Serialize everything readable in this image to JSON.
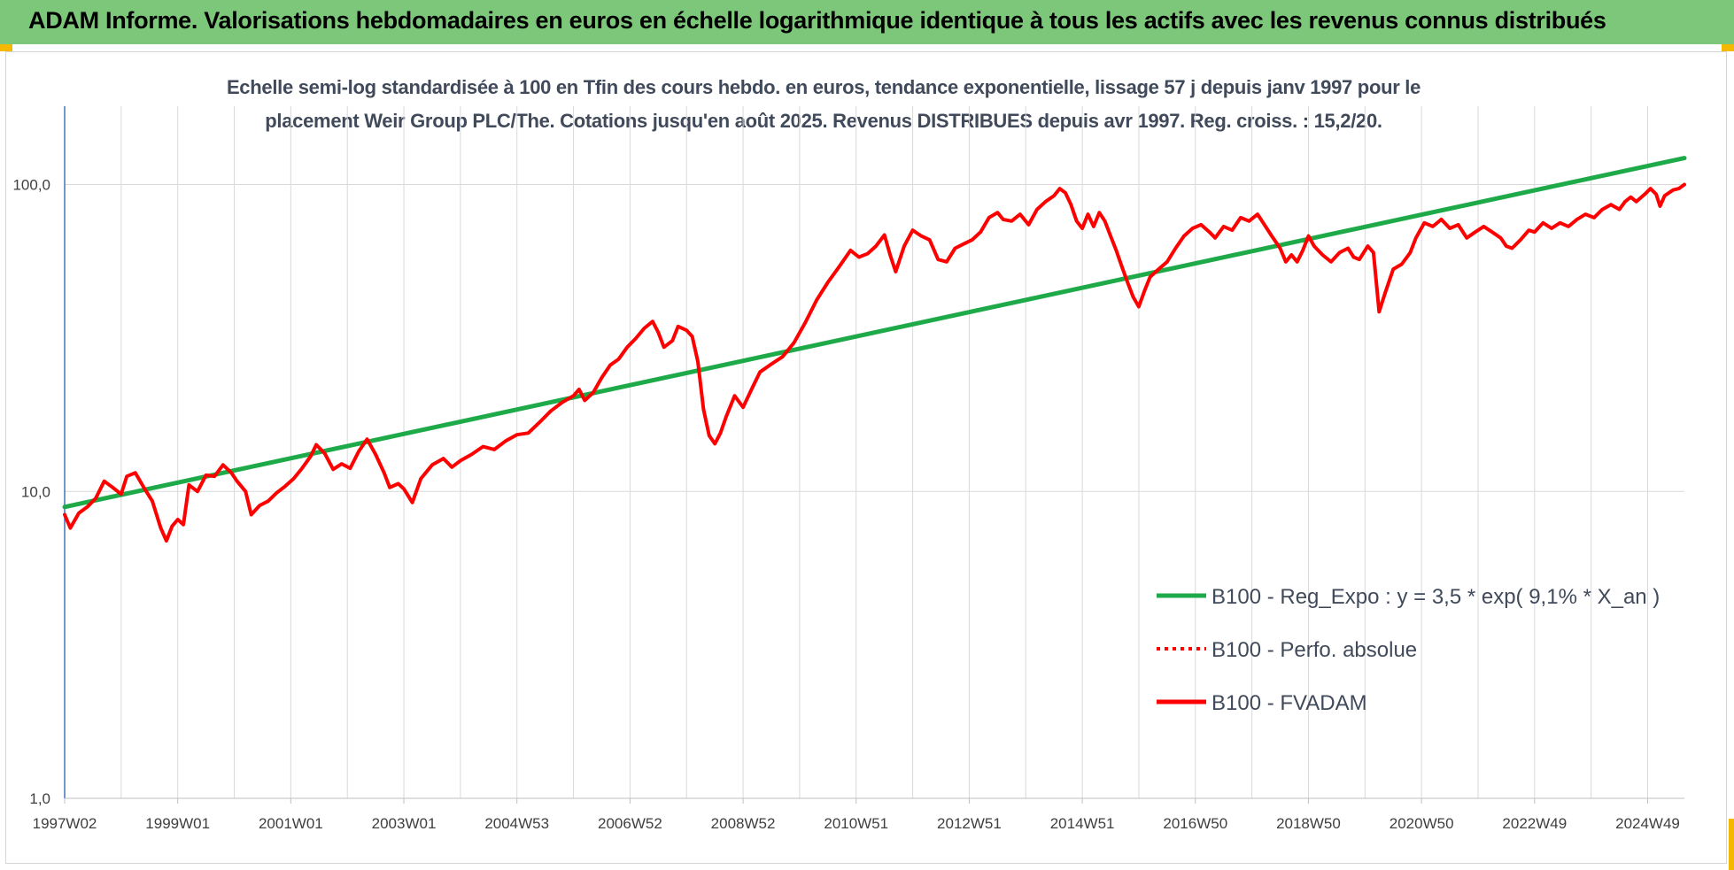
{
  "header": {
    "title": "ADAM Informe. Valorisations hebdomadaires en euros en échelle logarithmique identique à tous les actifs avec les revenus connus distribués",
    "bar_color": "#7dc77a",
    "accent_color": "#f5b800"
  },
  "chart_data": {
    "type": "line",
    "title_lines": [
      "Echelle semi-log standardisée à 100 en Tfin des cours hebdo. en euros, tendance exponentielle, lissage 57 j depuis janv 1997 pour le",
      "placement Weir Group PLC/The. Cotations jusqu'en août 2025. Revenus DISTRIBUES depuis avr 1997. Reg. croiss. : 15,2/20."
    ],
    "y_scale": "log",
    "ylim": [
      1,
      180
    ],
    "y_ticks": [
      {
        "value": 1,
        "label": "1,0"
      },
      {
        "value": 10,
        "label": "10,0"
      },
      {
        "value": 100,
        "label": "100,0"
      }
    ],
    "xlim": [
      1997.0,
      2025.65
    ],
    "x_ticks": [
      {
        "value": 1997.0,
        "label": "1997W02"
      },
      {
        "value": 1999.0,
        "label": "1999W01"
      },
      {
        "value": 2001.0,
        "label": "2001W01"
      },
      {
        "value": 2003.0,
        "label": "2003W01"
      },
      {
        "value": 2005.0,
        "label": "2004W53"
      },
      {
        "value": 2007.0,
        "label": "2006W52"
      },
      {
        "value": 2009.0,
        "label": "2008W52"
      },
      {
        "value": 2011.0,
        "label": "2010W51"
      },
      {
        "value": 2013.0,
        "label": "2012W51"
      },
      {
        "value": 2015.0,
        "label": "2014W51"
      },
      {
        "value": 2017.0,
        "label": "2016W50"
      },
      {
        "value": 2019.0,
        "label": "2018W50"
      },
      {
        "value": 2021.0,
        "label": "2020W50"
      },
      {
        "value": 2023.0,
        "label": "2022W49"
      },
      {
        "value": 2025.0,
        "label": "2024W49"
      }
    ],
    "grid": true,
    "legend_position": "bottom-right",
    "series": [
      {
        "name": "B100 - Reg_Expo : y = 3,5 * exp( 9,1% *  X_an )",
        "color": "#1faa4a",
        "style": "solid",
        "points": [
          [
            1997.0,
            8.9
          ],
          [
            2025.65,
            122
          ]
        ]
      },
      {
        "name": "B100 - Perfo. absolue",
        "color": "#ff0000",
        "style": "dotted",
        "points": []
      },
      {
        "name": "B100 - FVADAM",
        "color": "#ff0000",
        "style": "solid",
        "points": [
          [
            1997.0,
            8.4
          ],
          [
            1997.1,
            7.6
          ],
          [
            1997.25,
            8.5
          ],
          [
            1997.4,
            8.9
          ],
          [
            1997.55,
            9.5
          ],
          [
            1997.7,
            10.8
          ],
          [
            1997.85,
            10.3
          ],
          [
            1998.0,
            9.8
          ],
          [
            1998.1,
            11.2
          ],
          [
            1998.25,
            11.5
          ],
          [
            1998.4,
            10.3
          ],
          [
            1998.55,
            9.3
          ],
          [
            1998.7,
            7.6
          ],
          [
            1998.8,
            6.9
          ],
          [
            1998.9,
            7.7
          ],
          [
            1999.0,
            8.1
          ],
          [
            1999.1,
            7.8
          ],
          [
            1999.2,
            10.5
          ],
          [
            1999.35,
            10.0
          ],
          [
            1999.5,
            11.3
          ],
          [
            1999.65,
            11.2
          ],
          [
            1999.8,
            12.2
          ],
          [
            1999.95,
            11.5
          ],
          [
            2000.05,
            10.8
          ],
          [
            2000.2,
            10.0
          ],
          [
            2000.3,
            8.4
          ],
          [
            2000.45,
            9.0
          ],
          [
            2000.6,
            9.3
          ],
          [
            2000.75,
            9.9
          ],
          [
            2000.9,
            10.4
          ],
          [
            2001.05,
            11.0
          ],
          [
            2001.2,
            11.9
          ],
          [
            2001.35,
            13.0
          ],
          [
            2001.45,
            14.2
          ],
          [
            2001.6,
            13.3
          ],
          [
            2001.75,
            11.8
          ],
          [
            2001.9,
            12.3
          ],
          [
            2002.05,
            11.9
          ],
          [
            2002.2,
            13.5
          ],
          [
            2002.35,
            14.8
          ],
          [
            2002.5,
            13.2
          ],
          [
            2002.65,
            11.5
          ],
          [
            2002.75,
            10.3
          ],
          [
            2002.9,
            10.6
          ],
          [
            2003.0,
            10.2
          ],
          [
            2003.15,
            9.2
          ],
          [
            2003.3,
            11.0
          ],
          [
            2003.5,
            12.2
          ],
          [
            2003.7,
            12.8
          ],
          [
            2003.85,
            12.0
          ],
          [
            2004.0,
            12.6
          ],
          [
            2004.2,
            13.2
          ],
          [
            2004.4,
            14.0
          ],
          [
            2004.6,
            13.7
          ],
          [
            2004.8,
            14.6
          ],
          [
            2005.0,
            15.3
          ],
          [
            2005.2,
            15.5
          ],
          [
            2005.4,
            16.8
          ],
          [
            2005.6,
            18.3
          ],
          [
            2005.8,
            19.5
          ],
          [
            2006.0,
            20.5
          ],
          [
            2006.1,
            21.5
          ],
          [
            2006.2,
            19.8
          ],
          [
            2006.35,
            21.0
          ],
          [
            2006.5,
            23.5
          ],
          [
            2006.65,
            25.8
          ],
          [
            2006.8,
            27.0
          ],
          [
            2006.95,
            29.5
          ],
          [
            2007.1,
            31.5
          ],
          [
            2007.25,
            34.0
          ],
          [
            2007.4,
            35.8
          ],
          [
            2007.5,
            33.0
          ],
          [
            2007.6,
            29.5
          ],
          [
            2007.75,
            31.0
          ],
          [
            2007.85,
            34.5
          ],
          [
            2008.0,
            33.5
          ],
          [
            2008.1,
            32.0
          ],
          [
            2008.2,
            26.5
          ],
          [
            2008.3,
            18.5
          ],
          [
            2008.4,
            15.2
          ],
          [
            2008.5,
            14.3
          ],
          [
            2008.6,
            15.5
          ],
          [
            2008.7,
            17.5
          ],
          [
            2008.85,
            20.5
          ],
          [
            2009.0,
            18.8
          ],
          [
            2009.15,
            21.5
          ],
          [
            2009.3,
            24.5
          ],
          [
            2009.5,
            26.0
          ],
          [
            2009.7,
            27.5
          ],
          [
            2009.9,
            30.5
          ],
          [
            2010.1,
            35.5
          ],
          [
            2010.3,
            42.0
          ],
          [
            2010.5,
            48.0
          ],
          [
            2010.7,
            54.0
          ],
          [
            2010.9,
            61.0
          ],
          [
            2011.05,
            58.0
          ],
          [
            2011.2,
            59.5
          ],
          [
            2011.35,
            63.0
          ],
          [
            2011.5,
            68.5
          ],
          [
            2011.6,
            59.0
          ],
          [
            2011.7,
            52.0
          ],
          [
            2011.85,
            63.0
          ],
          [
            2012.0,
            71.0
          ],
          [
            2012.15,
            68.0
          ],
          [
            2012.3,
            66.0
          ],
          [
            2012.45,
            57.0
          ],
          [
            2012.6,
            56.0
          ],
          [
            2012.75,
            62.0
          ],
          [
            2012.9,
            64.0
          ],
          [
            2013.05,
            66.0
          ],
          [
            2013.2,
            70.0
          ],
          [
            2013.35,
            78.0
          ],
          [
            2013.5,
            81.0
          ],
          [
            2013.6,
            77.0
          ],
          [
            2013.75,
            76.0
          ],
          [
            2013.9,
            80.0
          ],
          [
            2014.05,
            74.0
          ],
          [
            2014.2,
            83.0
          ],
          [
            2014.35,
            88.0
          ],
          [
            2014.5,
            92.0
          ],
          [
            2014.6,
            97.0
          ],
          [
            2014.7,
            94.0
          ],
          [
            2014.8,
            86.0
          ],
          [
            2014.9,
            76.0
          ],
          [
            2015.0,
            72.0
          ],
          [
            2015.1,
            80.0
          ],
          [
            2015.2,
            73.0
          ],
          [
            2015.3,
            81.0
          ],
          [
            2015.4,
            76.0
          ],
          [
            2015.5,
            68.0
          ],
          [
            2015.6,
            61.0
          ],
          [
            2015.7,
            54.0
          ],
          [
            2015.8,
            48.0
          ],
          [
            2015.9,
            43.0
          ],
          [
            2016.0,
            40.0
          ],
          [
            2016.1,
            45.0
          ],
          [
            2016.2,
            50.0
          ],
          [
            2016.35,
            53.0
          ],
          [
            2016.5,
            56.0
          ],
          [
            2016.65,
            62.0
          ],
          [
            2016.8,
            68.0
          ],
          [
            2016.95,
            72.0
          ],
          [
            2017.1,
            74.0
          ],
          [
            2017.25,
            70.0
          ],
          [
            2017.35,
            67.0
          ],
          [
            2017.5,
            73.0
          ],
          [
            2017.65,
            71.0
          ],
          [
            2017.8,
            78.0
          ],
          [
            2017.95,
            76.0
          ],
          [
            2018.1,
            80.0
          ],
          [
            2018.2,
            75.0
          ],
          [
            2018.35,
            68.0
          ],
          [
            2018.5,
            62.0
          ],
          [
            2018.6,
            56.0
          ],
          [
            2018.7,
            59.0
          ],
          [
            2018.8,
            56.0
          ],
          [
            2018.9,
            61.0
          ],
          [
            2019.0,
            68.0
          ],
          [
            2019.1,
            63.0
          ],
          [
            2019.25,
            59.0
          ],
          [
            2019.4,
            56.0
          ],
          [
            2019.55,
            60.0
          ],
          [
            2019.7,
            62.0
          ],
          [
            2019.8,
            58.0
          ],
          [
            2019.9,
            57.0
          ],
          [
            2020.05,
            63.0
          ],
          [
            2020.15,
            60.0
          ],
          [
            2020.2,
            48.0
          ],
          [
            2020.25,
            38.5
          ],
          [
            2020.35,
            44.0
          ],
          [
            2020.5,
            53.0
          ],
          [
            2020.65,
            55.0
          ],
          [
            2020.8,
            60.0
          ],
          [
            2020.9,
            67.0
          ],
          [
            2021.05,
            75.0
          ],
          [
            2021.2,
            73.0
          ],
          [
            2021.35,
            77.0
          ],
          [
            2021.5,
            72.0
          ],
          [
            2021.65,
            74.0
          ],
          [
            2021.8,
            67.0
          ],
          [
            2021.95,
            70.0
          ],
          [
            2022.1,
            73.0
          ],
          [
            2022.25,
            70.0
          ],
          [
            2022.4,
            67.0
          ],
          [
            2022.5,
            63.0
          ],
          [
            2022.6,
            62.0
          ],
          [
            2022.75,
            66.0
          ],
          [
            2022.9,
            71.0
          ],
          [
            2023.0,
            70.0
          ],
          [
            2023.15,
            75.0
          ],
          [
            2023.3,
            72.0
          ],
          [
            2023.45,
            75.0
          ],
          [
            2023.6,
            73.0
          ],
          [
            2023.75,
            77.0
          ],
          [
            2023.9,
            80.0
          ],
          [
            2024.05,
            78.0
          ],
          [
            2024.2,
            83.0
          ],
          [
            2024.35,
            86.0
          ],
          [
            2024.5,
            83.0
          ],
          [
            2024.6,
            88.0
          ],
          [
            2024.7,
            91.0
          ],
          [
            2024.8,
            88.0
          ],
          [
            2024.95,
            93.0
          ],
          [
            2025.05,
            97.0
          ],
          [
            2025.15,
            93.0
          ],
          [
            2025.22,
            85.0
          ],
          [
            2025.3,
            92.0
          ],
          [
            2025.45,
            96.0
          ],
          [
            2025.55,
            97.0
          ],
          [
            2025.65,
            100.0
          ]
        ]
      }
    ]
  }
}
